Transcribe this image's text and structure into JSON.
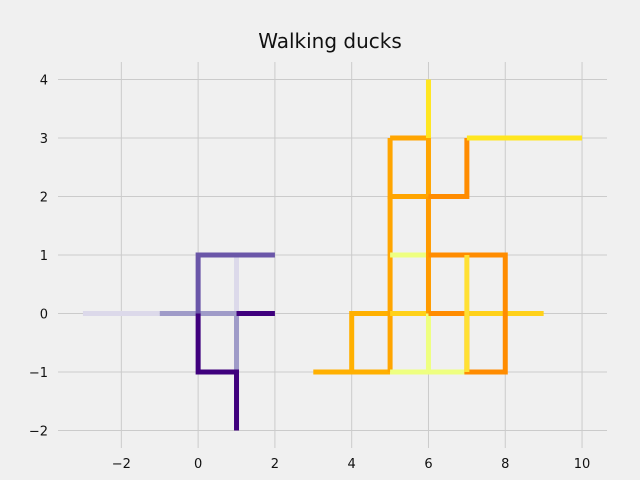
{
  "chart_data": {
    "type": "line",
    "title": "Walking ducks",
    "xlabel": "",
    "ylabel": "",
    "xlim": [
      -3.65,
      10.65
    ],
    "ylim": [
      -2.3,
      4.3
    ],
    "xticks": [
      -2,
      0,
      2,
      4,
      6,
      8,
      10
    ],
    "yticks": [
      -2,
      -1,
      0,
      1,
      2,
      3,
      4
    ],
    "xtick_labels": [
      "−2",
      "0",
      "2",
      "4",
      "6",
      "8",
      "10"
    ],
    "ytick_labels": [
      "−2",
      "−1",
      "0",
      "1",
      "2",
      "3",
      "4"
    ],
    "grid": true,
    "legend": "none",
    "background": "#f0f0f0",
    "grid_color": "#cbcbcb",
    "series": [
      {
        "color": "#dcd9ea",
        "points": [
          [
            -3,
            0
          ],
          [
            -1,
            0
          ]
        ]
      },
      {
        "color": "#dcd9ea",
        "points": [
          [
            1,
            1
          ],
          [
            1,
            0
          ]
        ]
      },
      {
        "color": "#9f9bc8",
        "points": [
          [
            -1,
            0
          ],
          [
            1,
            0
          ],
          [
            1,
            -1
          ]
        ]
      },
      {
        "color": "#6a56a8",
        "points": [
          [
            2,
            1
          ],
          [
            0,
            1
          ],
          [
            0,
            0
          ]
        ]
      },
      {
        "color": "#3f007d",
        "points": [
          [
            2,
            0
          ],
          [
            1,
            0
          ]
        ]
      },
      {
        "color": "#3f007d",
        "points": [
          [
            0,
            0
          ],
          [
            0,
            -1
          ],
          [
            1,
            -1
          ],
          [
            1,
            -2
          ]
        ]
      },
      {
        "color": "#ffb000",
        "points": [
          [
            3,
            -1
          ],
          [
            5,
            -1
          ]
        ]
      },
      {
        "color": "#ffb000",
        "points": [
          [
            4,
            -1
          ],
          [
            4,
            0
          ],
          [
            5,
            0
          ]
        ]
      },
      {
        "color": "#ffa500",
        "points": [
          [
            5,
            3
          ],
          [
            6,
            3
          ],
          [
            6,
            2
          ],
          [
            5,
            2
          ],
          [
            5,
            3
          ]
        ]
      },
      {
        "color": "#ffa500",
        "points": [
          [
            5,
            2
          ],
          [
            5,
            -1
          ]
        ]
      },
      {
        "color": "#ffd11a",
        "points": [
          [
            5,
            0
          ],
          [
            9,
            0
          ]
        ]
      },
      {
        "color": "#eeff80",
        "points": [
          [
            5,
            1
          ],
          [
            6,
            1
          ],
          [
            6,
            -1
          ]
        ]
      },
      {
        "color": "#eeff80",
        "points": [
          [
            5,
            -1
          ],
          [
            7,
            -1
          ]
        ]
      },
      {
        "color": "#ff9b00",
        "points": [
          [
            6,
            2
          ],
          [
            6,
            0
          ]
        ]
      },
      {
        "color": "#ff8c00",
        "points": [
          [
            6,
            2
          ],
          [
            7,
            2
          ],
          [
            7,
            3
          ]
        ]
      },
      {
        "color": "#ff8c00",
        "points": [
          [
            6,
            1
          ],
          [
            8,
            1
          ],
          [
            8,
            -1
          ],
          [
            7,
            -1
          ],
          [
            7,
            0
          ],
          [
            6,
            0
          ]
        ]
      },
      {
        "color": "#ffe033",
        "points": [
          [
            7,
            1
          ],
          [
            7,
            -1
          ]
        ]
      },
      {
        "color": "#ffe620",
        "points": [
          [
            6,
            3
          ],
          [
            6,
            4
          ]
        ]
      },
      {
        "color": "#ffe620",
        "points": [
          [
            7,
            3
          ],
          [
            10,
            3
          ]
        ]
      }
    ]
  }
}
